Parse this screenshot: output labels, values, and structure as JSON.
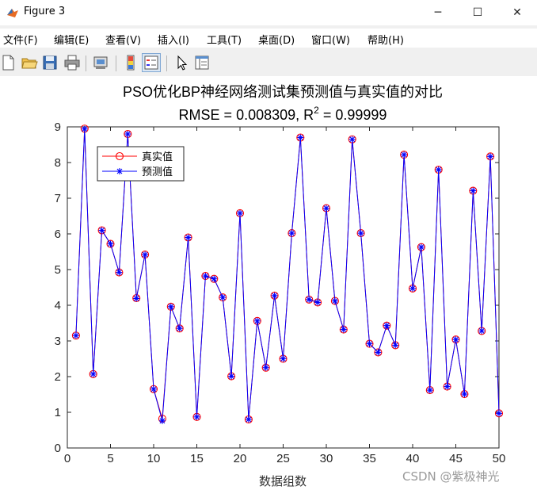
{
  "window": {
    "title": "Figure 3",
    "controls": {
      "minimize": "─",
      "maximize": "☐",
      "close": "✕"
    }
  },
  "menu": {
    "items": [
      "文件(F)",
      "编辑(E)",
      "查看(V)",
      "插入(I)",
      "工具(T)",
      "桌面(D)",
      "窗口(W)",
      "帮助(H)"
    ]
  },
  "toolbar": {
    "buttons": [
      "new-file-icon",
      "open-folder-icon",
      "save-icon",
      "print-icon",
      "print-preview-icon",
      "colorbar-icon",
      "legend-icon",
      "pointer-icon",
      "property-inspector-icon"
    ]
  },
  "watermark": "CSDN @紫极神光",
  "chart_data": {
    "type": "line",
    "title": "PSO优化BP神经网络测试集预测值与真实值的对比",
    "subtitle_prefix": "RMSE = 0.008309, R",
    "subtitle_sup": "2",
    "subtitle_suffix": " = 0.99999",
    "xlabel": "数据组数",
    "ylabel": "",
    "xlim": [
      0,
      50
    ],
    "ylim": [
      0,
      9
    ],
    "xticks": [
      0,
      5,
      10,
      15,
      20,
      25,
      30,
      35,
      40,
      45,
      50
    ],
    "yticks": [
      0,
      1,
      2,
      3,
      4,
      5,
      6,
      7,
      8,
      9
    ],
    "grid": false,
    "legend_position": "top-left",
    "x": [
      1,
      2,
      3,
      4,
      5,
      6,
      7,
      8,
      9,
      10,
      11,
      12,
      13,
      14,
      15,
      16,
      17,
      18,
      19,
      20,
      21,
      22,
      23,
      24,
      25,
      26,
      27,
      28,
      29,
      30,
      31,
      32,
      33,
      34,
      35,
      36,
      37,
      38,
      39,
      40,
      41,
      42,
      43,
      44,
      45,
      46,
      47,
      48,
      49,
      50
    ],
    "series": [
      {
        "name": "真实值",
        "color": "#ff0000",
        "marker": "circle",
        "values": [
          3.15,
          8.95,
          2.07,
          6.1,
          5.72,
          4.92,
          8.8,
          4.2,
          5.42,
          1.65,
          0.82,
          3.96,
          3.35,
          5.9,
          0.87,
          4.82,
          4.74,
          4.22,
          2.01,
          6.58,
          0.8,
          3.56,
          2.25,
          4.27,
          2.5,
          6.02,
          8.7,
          4.16,
          4.08,
          6.72,
          4.12,
          3.32,
          8.65,
          6.02,
          2.92,
          2.68,
          3.43,
          2.88,
          8.22,
          4.47,
          5.63,
          1.62,
          7.8,
          1.72,
          3.04,
          1.51,
          7.21,
          3.28,
          8.17,
          0.97
        ]
      },
      {
        "name": "预测值",
        "color": "#0000ff",
        "marker": "star",
        "values": [
          3.15,
          8.94,
          2.07,
          6.1,
          5.72,
          4.92,
          8.8,
          4.19,
          5.42,
          1.65,
          0.76,
          3.96,
          3.35,
          5.9,
          0.87,
          4.82,
          4.74,
          4.22,
          2.01,
          6.58,
          0.8,
          3.56,
          2.25,
          4.27,
          2.5,
          6.02,
          8.7,
          4.16,
          4.08,
          6.72,
          4.12,
          3.32,
          8.65,
          6.02,
          2.92,
          2.68,
          3.43,
          2.88,
          8.22,
          4.47,
          5.63,
          1.62,
          7.8,
          1.72,
          3.04,
          1.51,
          7.21,
          3.28,
          8.17,
          0.97
        ]
      }
    ]
  }
}
